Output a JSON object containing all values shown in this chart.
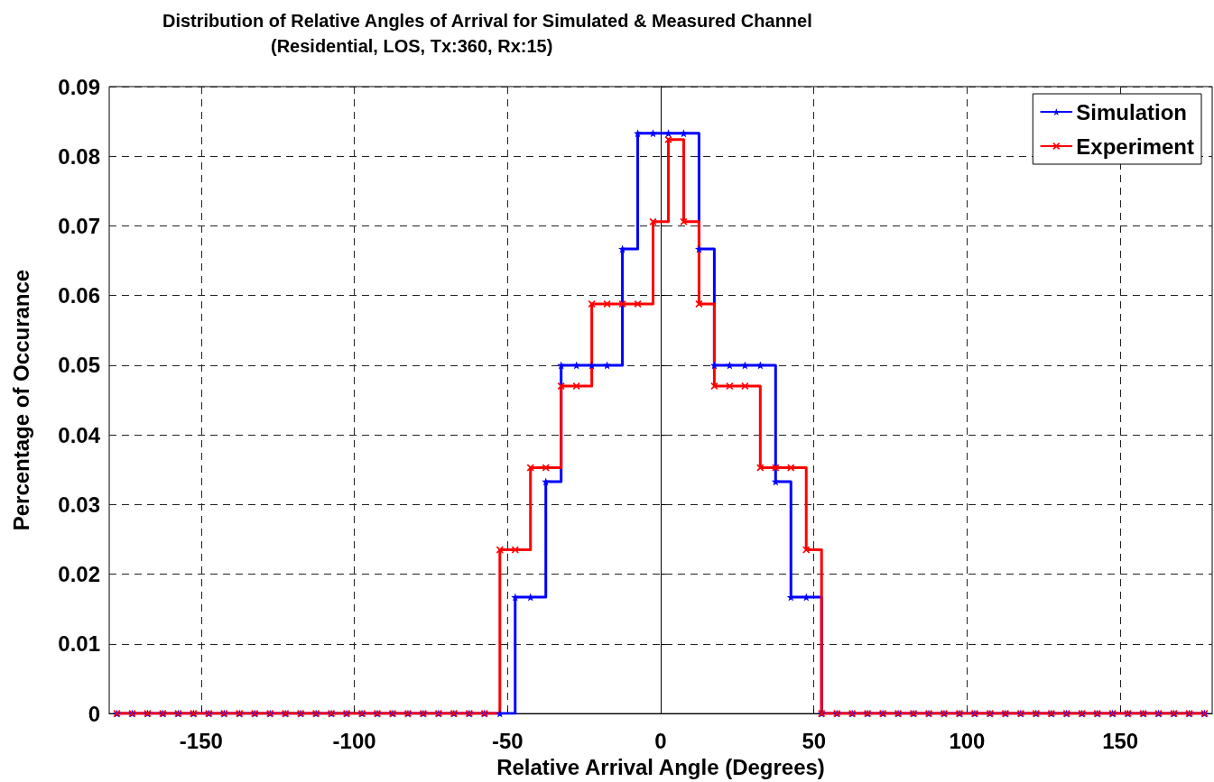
{
  "chart_data": {
    "type": "step",
    "title": "Distribution of Relative Angles of Arrival for Simulated & Measured Channel",
    "subtitle": "(Residential, LOS, Tx:360, Rx:15)",
    "xlabel": "Relative Arrival Angle (Degrees)",
    "ylabel": "Percentage of Occurance",
    "x": [
      -177.5,
      -172.5,
      -167.5,
      -162.5,
      -157.5,
      -152.5,
      -147.5,
      -142.5,
      -137.5,
      -132.5,
      -127.5,
      -122.5,
      -117.5,
      -112.5,
      -107.5,
      -102.5,
      -97.5,
      -92.5,
      -87.5,
      -82.5,
      -77.5,
      -72.5,
      -67.5,
      -62.5,
      -57.5,
      -52.5,
      -47.5,
      -42.5,
      -37.5,
      -32.5,
      -27.5,
      -22.5,
      -17.5,
      -12.5,
      -7.5,
      -2.5,
      2.5,
      7.5,
      12.5,
      17.5,
      22.5,
      27.5,
      32.5,
      37.5,
      42.5,
      47.5,
      52.5,
      57.5,
      62.5,
      67.5,
      72.5,
      77.5,
      82.5,
      87.5,
      92.5,
      97.5,
      102.5,
      107.5,
      112.5,
      117.5,
      122.5,
      127.5,
      132.5,
      137.5,
      142.5,
      147.5,
      152.5,
      157.5,
      162.5,
      167.5,
      172.5,
      177.5
    ],
    "series": [
      {
        "name": "Simulation",
        "color": "#0000ff",
        "marker": "star",
        "values": [
          0,
          0,
          0,
          0,
          0,
          0,
          0,
          0,
          0,
          0,
          0,
          0,
          0,
          0,
          0,
          0,
          0,
          0,
          0,
          0,
          0,
          0,
          0,
          0,
          0,
          0,
          0.0167,
          0.0167,
          0.0333,
          0.05,
          0.05,
          0.05,
          0.05,
          0.0667,
          0.0833,
          0.0833,
          0.0833,
          0.0833,
          0.0667,
          0.05,
          0.05,
          0.05,
          0.05,
          0.0333,
          0.0167,
          0.0167,
          0,
          0,
          0,
          0,
          0,
          0,
          0,
          0,
          0,
          0,
          0,
          0,
          0,
          0,
          0,
          0,
          0,
          0,
          0,
          0,
          0,
          0,
          0,
          0,
          0,
          0
        ]
      },
      {
        "name": "Experiment",
        "color": "#ff0000",
        "marker": "cross",
        "values": [
          0,
          0,
          0,
          0,
          0,
          0,
          0,
          0,
          0,
          0,
          0,
          0,
          0,
          0,
          0,
          0,
          0,
          0,
          0,
          0,
          0,
          0,
          0,
          0,
          0,
          0.0235,
          0.0235,
          0.0353,
          0.0353,
          0.047,
          0.047,
          0.0588,
          0.0588,
          0.0588,
          0.0588,
          0.0706,
          0.0824,
          0.0706,
          0.0588,
          0.047,
          0.047,
          0.047,
          0.0353,
          0.0353,
          0.0353,
          0.0235,
          0,
          0,
          0,
          0,
          0,
          0,
          0,
          0,
          0,
          0,
          0,
          0,
          0,
          0,
          0,
          0,
          0,
          0,
          0,
          0,
          0,
          0,
          0,
          0,
          0,
          0
        ]
      }
    ],
    "xlim": [
      -180,
      180
    ],
    "xticks": [
      -150,
      -100,
      -50,
      0,
      50,
      100,
      150
    ],
    "ylim": [
      0,
      0.09
    ],
    "yticks": [
      0,
      0.01,
      0.02,
      0.03,
      0.04,
      0.05,
      0.06,
      0.07,
      0.08,
      0.09
    ],
    "grid": true,
    "legend": "top right",
    "line_style": "solid"
  }
}
